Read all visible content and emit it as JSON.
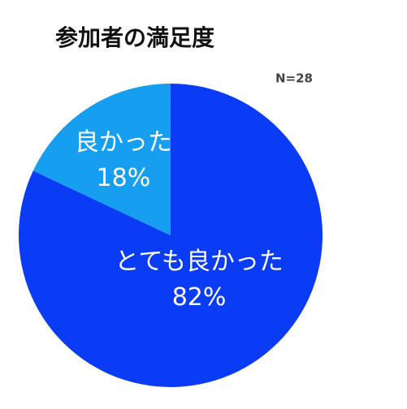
{
  "chart_data": {
    "type": "pie",
    "title": "参加者の満足度",
    "subtitle": "N=28",
    "categories": [
      "とても良かった",
      "良かった"
    ],
    "values": [
      82,
      18
    ],
    "value_labels": [
      "82%",
      "18%"
    ],
    "colors": [
      "#0a3cf5",
      "#169ff0"
    ]
  }
}
